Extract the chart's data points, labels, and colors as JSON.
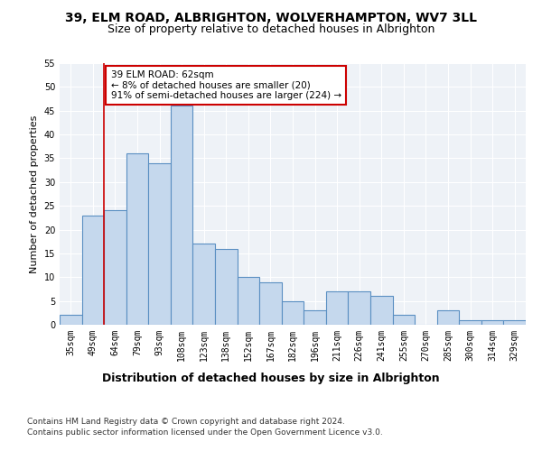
{
  "title": "39, ELM ROAD, ALBRIGHTON, WOLVERHAMPTON, WV7 3LL",
  "subtitle": "Size of property relative to detached houses in Albrighton",
  "xlabel": "Distribution of detached houses by size in Albrighton",
  "ylabel": "Number of detached properties",
  "categories": [
    "35sqm",
    "49sqm",
    "64sqm",
    "79sqm",
    "93sqm",
    "108sqm",
    "123sqm",
    "138sqm",
    "152sqm",
    "167sqm",
    "182sqm",
    "196sqm",
    "211sqm",
    "226sqm",
    "241sqm",
    "255sqm",
    "270sqm",
    "285sqm",
    "300sqm",
    "314sqm",
    "329sqm"
  ],
  "values": [
    2,
    23,
    24,
    36,
    34,
    46,
    17,
    16,
    10,
    9,
    5,
    3,
    7,
    7,
    6,
    2,
    0,
    3,
    1,
    1,
    1
  ],
  "bar_color": "#c5d8ed",
  "bar_edge_color": "#5a8fc2",
  "bar_linewidth": 0.8,
  "property_line_x": 2,
  "annotation_text": "39 ELM ROAD: 62sqm\n← 8% of detached houses are smaller (20)\n91% of semi-detached houses are larger (224) →",
  "annotation_box_color": "#ffffff",
  "annotation_box_edge_color": "#cc0000",
  "ylim": [
    0,
    55
  ],
  "yticks": [
    0,
    5,
    10,
    15,
    20,
    25,
    30,
    35,
    40,
    45,
    50,
    55
  ],
  "footer_line1": "Contains HM Land Registry data © Crown copyright and database right 2024.",
  "footer_line2": "Contains public sector information licensed under the Open Government Licence v3.0.",
  "title_fontsize": 10,
  "subtitle_fontsize": 9,
  "tick_fontsize": 7,
  "ylabel_fontsize": 8,
  "xlabel_fontsize": 9,
  "annotation_fontsize": 7.5,
  "bg_color": "#eef2f7",
  "grid_color": "#ffffff",
  "vline_color": "#cc0000"
}
